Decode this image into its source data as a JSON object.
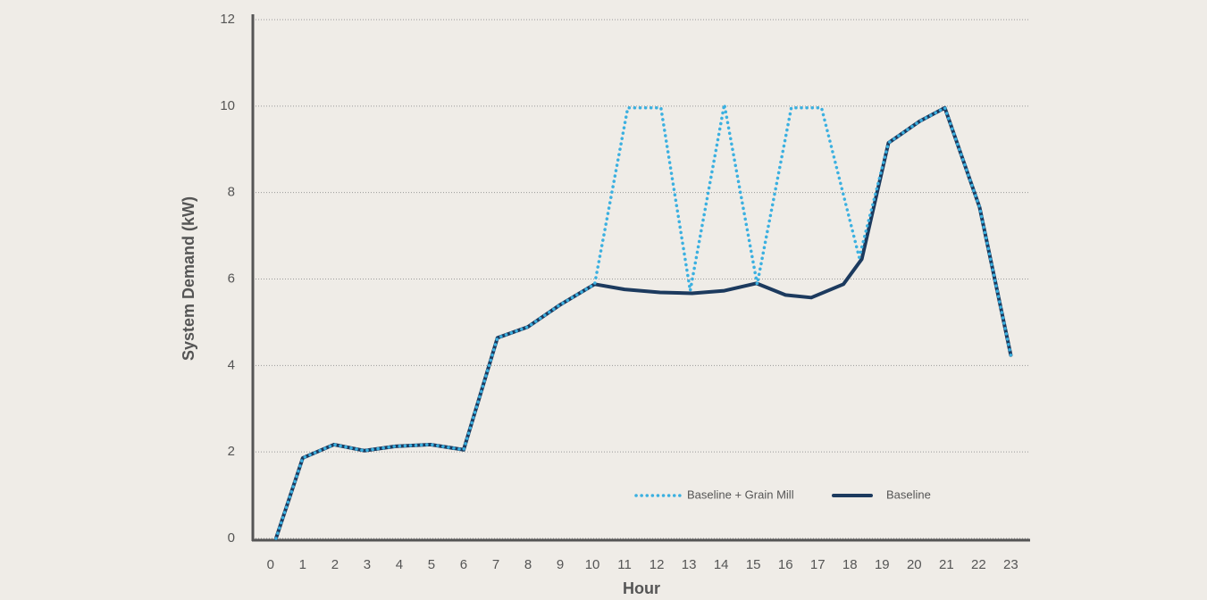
{
  "chart_data": {
    "type": "line",
    "y_label": "System Demand (kW)",
    "x_label": "Hour",
    "xlim": [
      -0.55,
      23.6
    ],
    "ylim": [
      0,
      12
    ],
    "xticks": [
      0,
      1,
      2,
      3,
      4,
      5,
      6,
      7,
      8,
      9,
      10,
      11,
      12,
      13,
      14,
      15,
      16,
      17,
      18,
      19,
      20,
      21,
      22,
      23
    ],
    "yticks": [
      0,
      2,
      4,
      6,
      8,
      10,
      12
    ],
    "grid": true,
    "series": [
      {
        "name": "Baseline + Grain Mill",
        "color": "#3bb0e0",
        "style": "dotted",
        "x": [
          0.17,
          1.0,
          1.97,
          2.91,
          3.88,
          4.97,
          6.0,
          7.05,
          7.99,
          8.99,
          10.07,
          11.1,
          12.13,
          13.04,
          14.1,
          15.12,
          16.18,
          17.12,
          18.29,
          19.2,
          20.17,
          20.95,
          22.03,
          23.0
        ],
        "values": [
          0,
          1.86,
          2.17,
          2.03,
          2.13,
          2.17,
          2.05,
          4.64,
          4.89,
          5.4,
          5.88,
          9.96,
          9.96,
          5.73,
          10.04,
          5.88,
          9.96,
          9.96,
          6.5,
          9.15,
          9.65,
          9.96,
          7.66,
          4.24
        ]
      },
      {
        "name": "Baseline",
        "color": "#1c3a5e",
        "style": "solid",
        "x": [
          0.17,
          1.0,
          1.97,
          2.91,
          3.88,
          4.97,
          6.0,
          7.05,
          7.99,
          8.99,
          10.07,
          11.0,
          12.1,
          13.1,
          14.1,
          15.1,
          16.0,
          16.8,
          17.8,
          18.37,
          19.2,
          20.17,
          20.95,
          22.03,
          23.0
        ],
        "values": [
          0,
          1.86,
          2.17,
          2.03,
          2.13,
          2.17,
          2.05,
          4.64,
          4.89,
          5.4,
          5.88,
          5.76,
          5.69,
          5.67,
          5.73,
          5.9,
          5.63,
          5.57,
          5.88,
          6.46,
          9.15,
          9.65,
          9.96,
          7.66,
          4.24
        ]
      }
    ]
  }
}
